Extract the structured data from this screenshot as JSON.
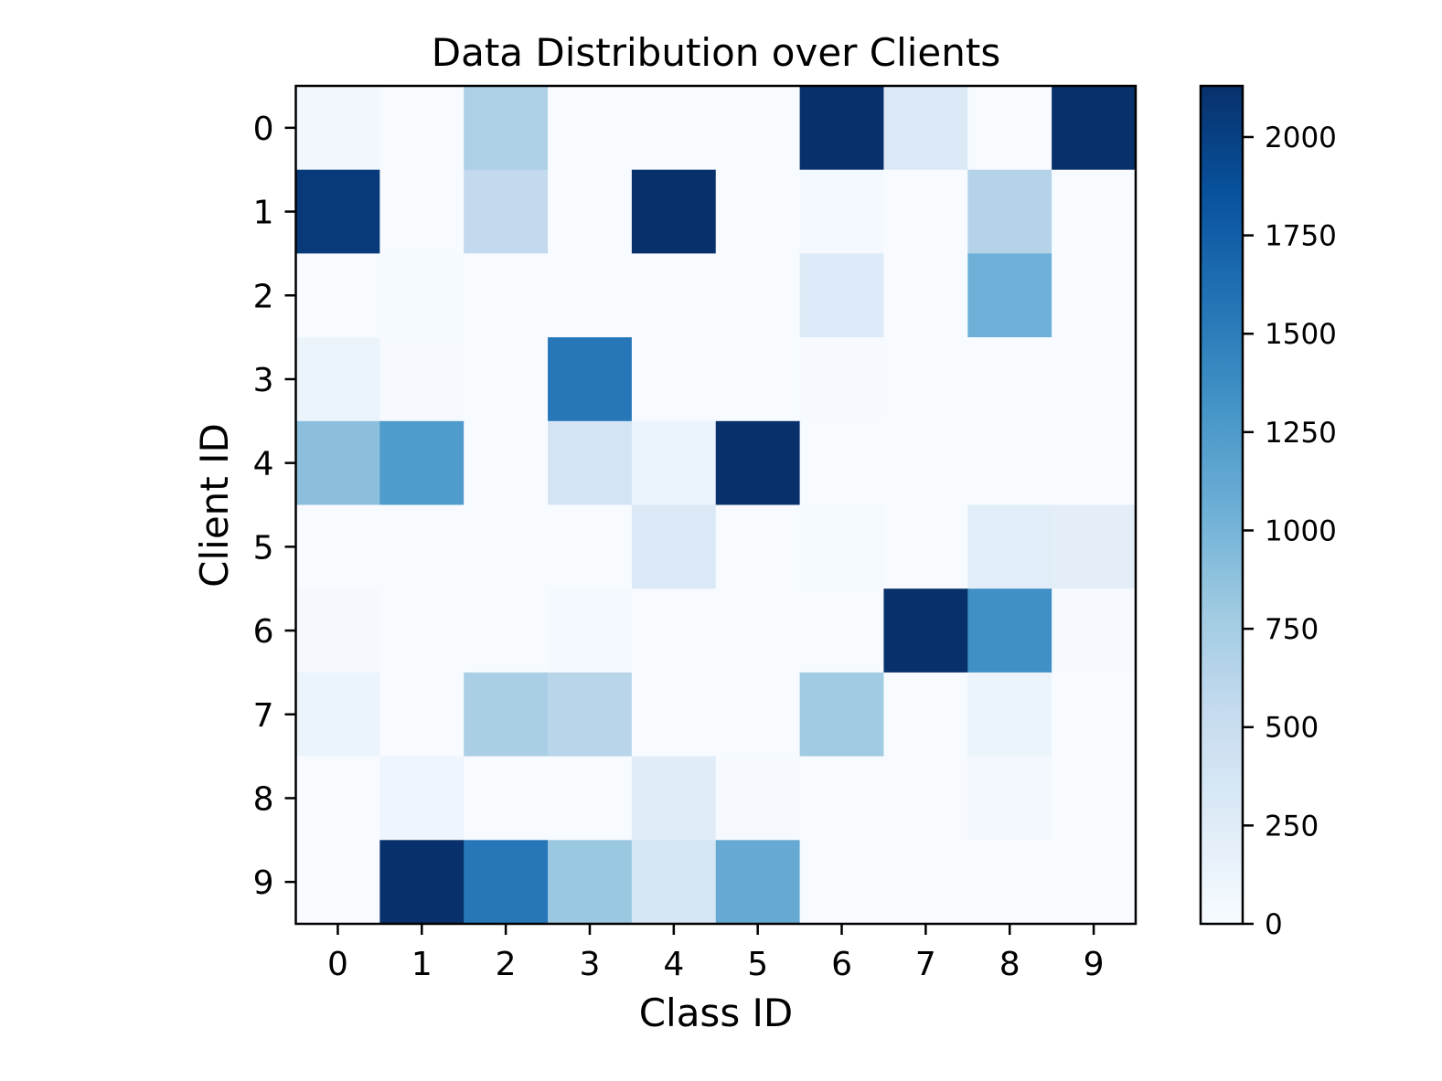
{
  "chart_data": {
    "type": "heatmap",
    "title": "Data Distribution over Clients",
    "xlabel": "Class ID",
    "ylabel": "Client ID",
    "x_categories": [
      "0",
      "1",
      "2",
      "3",
      "4",
      "5",
      "6",
      "7",
      "8",
      "9"
    ],
    "y_categories": [
      "0",
      "1",
      "2",
      "3",
      "4",
      "5",
      "6",
      "7",
      "8",
      "9"
    ],
    "values": [
      [
        60,
        0,
        700,
        0,
        0,
        0,
        2130,
        300,
        0,
        2130
      ],
      [
        2050,
        0,
        550,
        0,
        2130,
        0,
        40,
        0,
        650,
        0
      ],
      [
        0,
        20,
        0,
        0,
        0,
        0,
        280,
        0,
        1050,
        0
      ],
      [
        120,
        10,
        0,
        1550,
        0,
        0,
        10,
        0,
        0,
        0
      ],
      [
        900,
        1250,
        0,
        380,
        120,
        2130,
        0,
        5,
        0,
        0
      ],
      [
        0,
        0,
        0,
        0,
        300,
        0,
        20,
        0,
        230,
        210
      ],
      [
        25,
        0,
        0,
        40,
        0,
        0,
        0,
        2130,
        1350,
        15
      ],
      [
        120,
        0,
        720,
        620,
        0,
        0,
        780,
        0,
        120,
        0
      ],
      [
        0,
        100,
        0,
        0,
        250,
        15,
        0,
        0,
        50,
        0
      ],
      [
        0,
        2130,
        1550,
        820,
        350,
        1100,
        0,
        0,
        0,
        0
      ]
    ],
    "vmin": 0,
    "vmax": 2130,
    "colormap": "Blues",
    "colormap_stops": [
      "#f7fbff",
      "#deebf7",
      "#c6dbef",
      "#9ecae1",
      "#6baed6",
      "#4292c6",
      "#2171b5",
      "#08519c",
      "#08306b"
    ],
    "colorbar": {
      "ticks": [
        0,
        250,
        500,
        750,
        1000,
        1250,
        1500,
        1750,
        2000
      ],
      "tick_labels": [
        "0",
        "250",
        "500",
        "750",
        "1000",
        "1250",
        "1500",
        "1750",
        "2000"
      ]
    },
    "grid": false
  }
}
